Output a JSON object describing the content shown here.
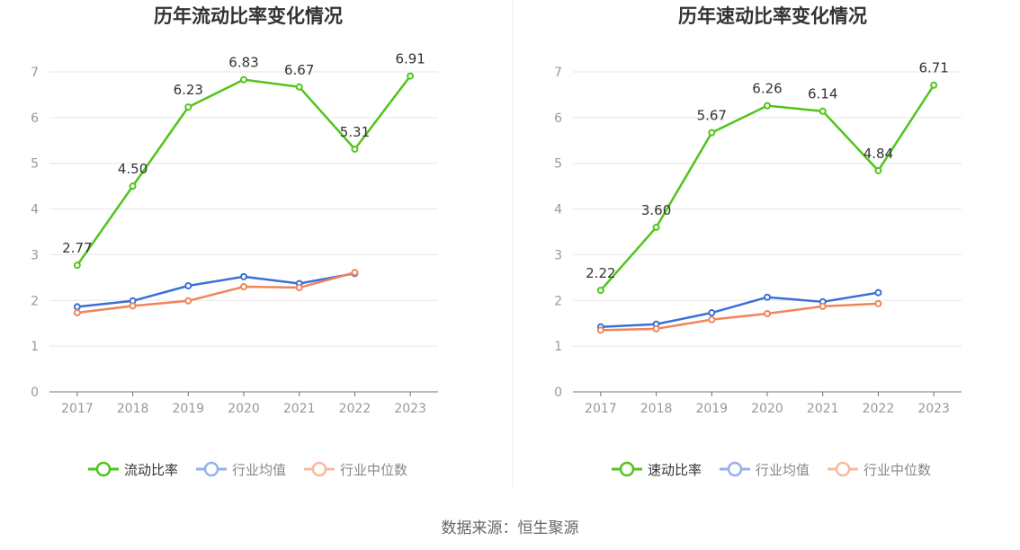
{
  "source_text": "数据来源：恒生聚源",
  "colors": {
    "primary": "#52c41a",
    "avg": "#3a6fd8",
    "median": "#f0845a",
    "grid": "#e6e6e6",
    "axis": "#6e7079",
    "text": "#333333"
  },
  "chart_data": [
    {
      "type": "line",
      "title": "历年流动比率变化情况",
      "x": [
        "2017",
        "2018",
        "2019",
        "2020",
        "2021",
        "2022",
        "2023"
      ],
      "ylim": [
        0,
        7
      ],
      "yticks": [
        "0",
        "1",
        "2",
        "3",
        "4",
        "5",
        "6",
        "7"
      ],
      "grid": true,
      "legend_position": "bottom",
      "series": [
        {
          "name": "流动比率",
          "values": [
            2.77,
            4.5,
            6.23,
            6.83,
            6.67,
            5.31,
            6.91
          ],
          "labels": [
            "2.77",
            "4.50",
            "6.23",
            "6.83",
            "6.67",
            "5.31",
            "6.91"
          ],
          "color": "#52c41a"
        },
        {
          "name": "行业均值",
          "values": [
            1.86,
            1.99,
            2.32,
            2.52,
            2.37,
            2.59,
            null
          ],
          "color": "#3a6fd8",
          "legend_color": "#93b2ec"
        },
        {
          "name": "行业中位数",
          "values": [
            1.73,
            1.88,
            1.99,
            2.3,
            2.28,
            2.61,
            null
          ],
          "color": "#f0845a",
          "legend_color": "#f7b9a0"
        }
      ]
    },
    {
      "type": "line",
      "title": "历年速动比率变化情况",
      "x": [
        "2017",
        "2018",
        "2019",
        "2020",
        "2021",
        "2022",
        "2023"
      ],
      "ylim": [
        0,
        7
      ],
      "yticks": [
        "0",
        "1",
        "2",
        "3",
        "4",
        "5",
        "6",
        "7"
      ],
      "grid": true,
      "legend_position": "bottom",
      "series": [
        {
          "name": "速动比率",
          "values": [
            2.22,
            3.6,
            5.67,
            6.26,
            6.14,
            4.84,
            6.71
          ],
          "labels": [
            "2.22",
            "3.60",
            "5.67",
            "6.26",
            "6.14",
            "4.84",
            "6.71"
          ],
          "color": "#52c41a"
        },
        {
          "name": "行业均值",
          "values": [
            1.42,
            1.48,
            1.73,
            2.07,
            1.97,
            2.17,
            null
          ],
          "color": "#3a6fd8",
          "legend_color": "#93b2ec"
        },
        {
          "name": "行业中位数",
          "values": [
            1.35,
            1.38,
            1.58,
            1.71,
            1.87,
            1.93,
            null
          ],
          "color": "#f0845a",
          "legend_color": "#f7b9a0"
        }
      ]
    }
  ]
}
